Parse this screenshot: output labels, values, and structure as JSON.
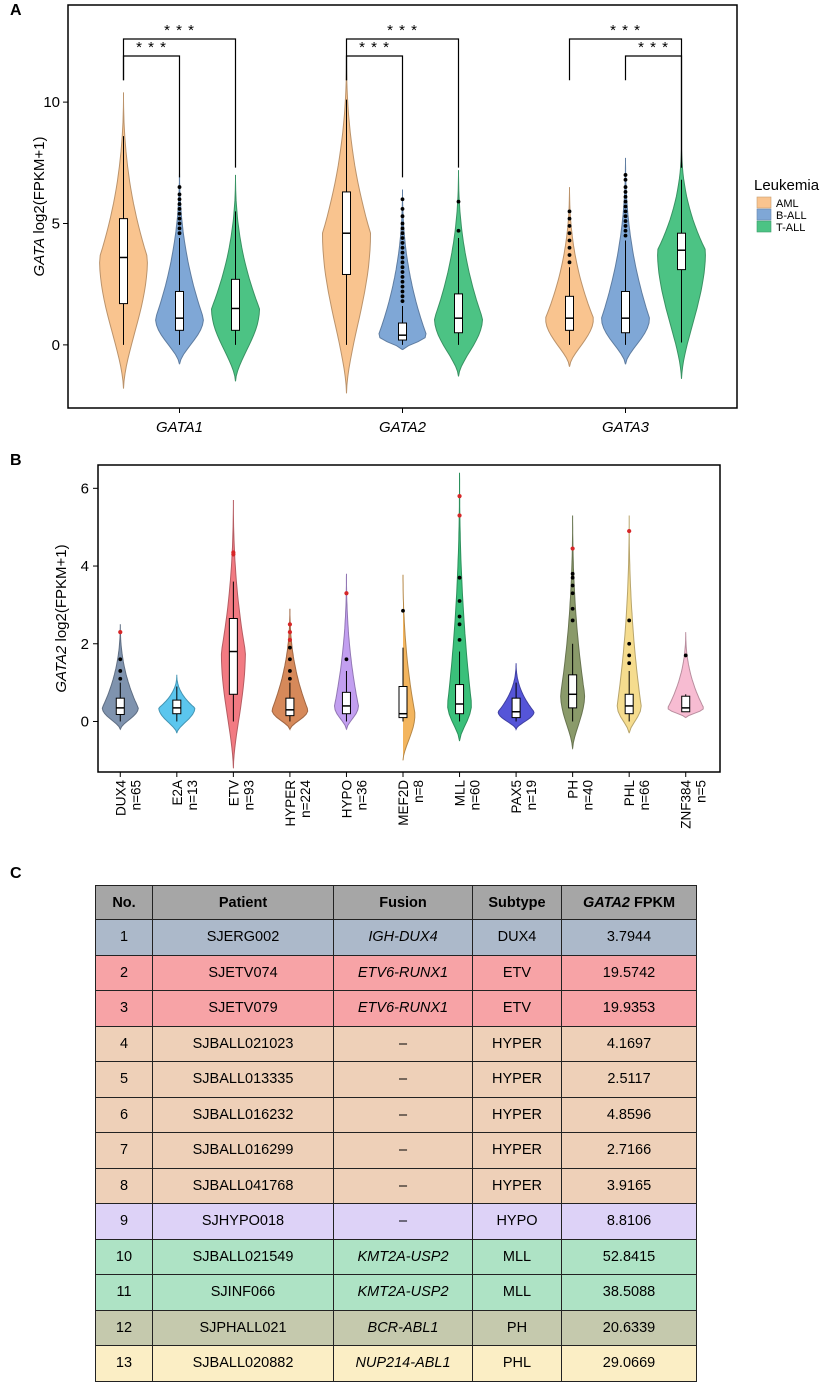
{
  "panels": {
    "a": "A",
    "b": "B",
    "c": "C"
  },
  "chart_data": [
    {
      "type": "violin",
      "panel": "A",
      "ylabel_gene": "GATA",
      "ylabel_rest": " log2(FPKM+1)",
      "ylim": [
        -2.6,
        14
      ],
      "yticks": [
        0,
        5,
        10
      ],
      "categories": [
        "GATA1",
        "GATA2",
        "GATA3"
      ],
      "legend": {
        "title": "Leukemia",
        "position": "right",
        "entries": [
          {
            "name": "AML",
            "color": "#f9c48f"
          },
          {
            "name": "B-ALL",
            "color": "#7fa7d6"
          },
          {
            "name": "T-ALL",
            "color": "#4cc384"
          }
        ]
      },
      "series": [
        {
          "name": "AML",
          "color": "#f9c48f",
          "groups": [
            {
              "category": "GATA1",
              "min": -1.8,
              "max": 10.4,
              "q1": 1.7,
              "median": 3.6,
              "q3": 5.2,
              "whisker_low": 0.0,
              "whisker_high": 8.6,
              "outliers": []
            },
            {
              "category": "GATA2",
              "min": -2.0,
              "max": 11.9,
              "q1": 2.9,
              "median": 4.6,
              "q3": 6.3,
              "whisker_low": 0.0,
              "whisker_high": 10.1,
              "outliers": []
            },
            {
              "category": "GATA3",
              "min": -0.9,
              "max": 6.5,
              "q1": 0.6,
              "median": 1.1,
              "q3": 2.0,
              "whisker_low": 0.0,
              "whisker_high": 3.2,
              "outliers": [
                3.4,
                3.7,
                4.0,
                4.3,
                4.6,
                4.9,
                5.2,
                5.5
              ]
            }
          ]
        },
        {
          "name": "B-ALL",
          "color": "#7fa7d6",
          "groups": [
            {
              "category": "GATA1",
              "min": -0.8,
              "max": 7.3,
              "q1": 0.6,
              "median": 1.1,
              "q3": 2.2,
              "whisker_low": 0.0,
              "whisker_high": 4.4,
              "outliers": [
                4.6,
                4.8,
                5.0,
                5.2,
                5.4,
                5.6,
                5.8,
                6.0,
                6.2,
                6.5
              ]
            },
            {
              "category": "GATA2",
              "min": -0.2,
              "max": 6.4,
              "q1": 0.2,
              "median": 0.4,
              "q3": 0.9,
              "whisker_low": 0.0,
              "whisker_high": 1.6,
              "outliers": [
                1.8,
                2.0,
                2.2,
                2.4,
                2.6,
                2.8,
                3.0,
                3.2,
                3.4,
                3.6,
                3.8,
                4.0,
                4.2,
                4.4,
                4.6,
                4.8,
                5.0,
                5.3,
                5.6,
                6.0
              ]
            },
            {
              "category": "GATA3",
              "min": -0.8,
              "max": 7.7,
              "q1": 0.5,
              "median": 1.1,
              "q3": 2.2,
              "whisker_low": 0.0,
              "whisker_high": 4.3,
              "outliers": [
                4.5,
                4.7,
                4.9,
                5.1,
                5.3,
                5.5,
                5.7,
                5.9,
                6.1,
                6.3,
                6.5,
                6.8,
                7.0
              ]
            }
          ]
        },
        {
          "name": "T-ALL",
          "color": "#4cc384",
          "groups": [
            {
              "category": "GATA1",
              "min": -1.5,
              "max": 7.0,
              "q1": 0.6,
              "median": 1.5,
              "q3": 2.7,
              "whisker_low": 0.0,
              "whisker_high": 5.5,
              "outliers": []
            },
            {
              "category": "GATA2",
              "min": -1.3,
              "max": 7.2,
              "q1": 0.5,
              "median": 1.1,
              "q3": 2.1,
              "whisker_low": 0.0,
              "whisker_high": 4.4,
              "outliers": [
                4.7,
                5.9
              ]
            },
            {
              "category": "GATA3",
              "min": -1.4,
              "max": 8.3,
              "q1": 3.1,
              "median": 3.9,
              "q3": 4.6,
              "whisker_low": 0.1,
              "whisker_high": 6.8,
              "outliers": []
            }
          ]
        }
      ],
      "significance": [
        {
          "category": "GATA1",
          "from": "AML",
          "to": "B-ALL",
          "label": "* * *",
          "level": 1
        },
        {
          "category": "GATA1",
          "from": "AML",
          "to": "T-ALL",
          "label": "* * *",
          "level": 2
        },
        {
          "category": "GATA2",
          "from": "AML",
          "to": "B-ALL",
          "label": "* * *",
          "level": 1
        },
        {
          "category": "GATA2",
          "from": "AML",
          "to": "T-ALL",
          "label": "* * *",
          "level": 2
        },
        {
          "category": "GATA3",
          "from": "B-ALL",
          "to": "T-ALL",
          "label": "* * *",
          "level": 1
        },
        {
          "category": "GATA3",
          "from": "AML",
          "to": "T-ALL",
          "label": "* * *",
          "level": 2
        }
      ]
    },
    {
      "type": "violin",
      "panel": "B",
      "ylabel_gene": "GATA2",
      "ylabel_rest": " log2(FPKM+1)",
      "ylim": [
        -1.3,
        6.6
      ],
      "yticks": [
        0,
        2,
        4,
        6
      ],
      "groups": [
        {
          "name": "DUX4",
          "n": "n=65",
          "color": "#7f93ae",
          "min": -0.2,
          "max": 2.5,
          "q1": 0.18,
          "median": 0.35,
          "q3": 0.6,
          "whisker_low": 0.0,
          "whisker_high": 1.0,
          "outliers": [
            1.1,
            1.3,
            1.6
          ],
          "red": [
            2.3
          ]
        },
        {
          "name": "E2A",
          "n": "n=13",
          "color": "#5bc6ee",
          "min": -0.3,
          "max": 1.2,
          "q1": 0.2,
          "median": 0.35,
          "q3": 0.55,
          "whisker_low": 0.0,
          "whisker_high": 0.9,
          "outliers": [],
          "red": []
        },
        {
          "name": "ETV",
          "n": "n=93",
          "color": "#f27a82",
          "min": -1.2,
          "max": 5.7,
          "q1": 0.7,
          "median": 1.8,
          "q3": 2.65,
          "whisker_low": 0.0,
          "whisker_high": 3.6,
          "outliers": [],
          "red": [
            4.3,
            4.35
          ]
        },
        {
          "name": "HYPER",
          "n": "n=224",
          "color": "#d6895a",
          "min": -0.2,
          "max": 2.9,
          "q1": 0.15,
          "median": 0.3,
          "q3": 0.6,
          "whisker_low": 0.0,
          "whisker_high": 1.0,
          "outliers": [
            1.1,
            1.3,
            1.6,
            1.9
          ],
          "red": [
            2.1,
            2.3,
            2.5
          ]
        },
        {
          "name": "HYPO",
          "n": "n=36",
          "color": "#c29ff0",
          "min": -0.2,
          "max": 3.8,
          "q1": 0.2,
          "median": 0.4,
          "q3": 0.75,
          "whisker_low": 0.0,
          "whisker_high": 1.3,
          "outliers": [
            1.6
          ],
          "red": [
            3.3
          ]
        },
        {
          "name": "MEF2D",
          "n": "n=8",
          "color": "#f3b55e",
          "min": -1.0,
          "max": 3.9,
          "q1": 0.1,
          "median": 0.2,
          "q3": 0.9,
          "whisker_low": 0.0,
          "whisker_high": 1.9,
          "outliers": [
            2.85
          ],
          "red": []
        },
        {
          "name": "MLL",
          "n": "n=60",
          "color": "#3ac07a",
          "min": -0.5,
          "max": 6.4,
          "q1": 0.2,
          "median": 0.45,
          "q3": 0.95,
          "whisker_low": 0.0,
          "whisker_high": 1.8,
          "outliers": [
            2.1,
            2.5,
            2.7,
            3.1,
            3.7
          ],
          "red": [
            5.3,
            5.8
          ]
        },
        {
          "name": "PAX5",
          "n": "n=19",
          "color": "#5555d8",
          "min": -0.2,
          "max": 1.5,
          "q1": 0.1,
          "median": 0.25,
          "q3": 0.6,
          "whisker_low": 0.0,
          "whisker_high": 1.0,
          "outliers": [],
          "red": []
        },
        {
          "name": "PH",
          "n": "n=40",
          "color": "#8a9a6a",
          "min": -0.7,
          "max": 5.3,
          "q1": 0.35,
          "median": 0.7,
          "q3": 1.2,
          "whisker_low": 0.0,
          "whisker_high": 2.0,
          "outliers": [
            2.6,
            2.9,
            3.3,
            3.5,
            3.7,
            3.8
          ],
          "red": [
            4.45
          ]
        },
        {
          "name": "PHL",
          "n": "n=66",
          "color": "#f5dc8e",
          "min": -0.3,
          "max": 5.3,
          "q1": 0.2,
          "median": 0.4,
          "q3": 0.7,
          "whisker_low": 0.0,
          "whisker_high": 1.3,
          "outliers": [
            1.5,
            1.7,
            2.0,
            2.6
          ],
          "red": [
            4.9
          ]
        },
        {
          "name": "ZNF384",
          "n": "n=5",
          "color": "#f7bcd2",
          "min": 0.1,
          "max": 2.3,
          "q1": 0.25,
          "median": 0.35,
          "q3": 0.65,
          "whisker_low": 0.25,
          "whisker_high": 0.7,
          "outliers": [
            1.7
          ],
          "red": []
        }
      ]
    }
  ],
  "table": {
    "headers": {
      "no": "No.",
      "patient": "Patient",
      "fusion": "Fusion",
      "subtype": "Subtype",
      "fpkm_gene": "GATA2",
      "fpkm_rest": " FPKM"
    },
    "rows": [
      {
        "no": "1",
        "patient": "SJERG002",
        "fusion": "IGH-DUX4",
        "subtype": "DUX4",
        "fpkm": "3.7944",
        "color": "#acb9ca"
      },
      {
        "no": "2",
        "patient": "SJETV074",
        "fusion": "ETV6-RUNX1",
        "subtype": "ETV",
        "fpkm": "19.5742",
        "color": "#f7a3a6"
      },
      {
        "no": "3",
        "patient": "SJETV079",
        "fusion": "ETV6-RUNX1",
        "subtype": "ETV",
        "fpkm": "19.9353",
        "color": "#f7a3a6"
      },
      {
        "no": "4",
        "patient": "SJBALL021023",
        "fusion": "–",
        "subtype": "HYPER",
        "fpkm": "4.1697",
        "color": "#eed0b8"
      },
      {
        "no": "5",
        "patient": "SJBALL013335",
        "fusion": "–",
        "subtype": "HYPER",
        "fpkm": "2.5117",
        "color": "#eed0b8"
      },
      {
        "no": "6",
        "patient": "SJBALL016232",
        "fusion": "–",
        "subtype": "HYPER",
        "fpkm": "4.8596",
        "color": "#eed0b8"
      },
      {
        "no": "7",
        "patient": "SJBALL016299",
        "fusion": "–",
        "subtype": "HYPER",
        "fpkm": "2.7166",
        "color": "#eed0b8"
      },
      {
        "no": "8",
        "patient": "SJBALL041768",
        "fusion": "–",
        "subtype": "HYPER",
        "fpkm": "3.9165",
        "color": "#eed0b8"
      },
      {
        "no": "9",
        "patient": "SJHYPO018",
        "fusion": "–",
        "subtype": "HYPO",
        "fpkm": "8.8106",
        "color": "#ddd2f7"
      },
      {
        "no": "10",
        "patient": "SJBALL021549",
        "fusion": "KMT2A-USP2",
        "subtype": "MLL",
        "fpkm": "52.8415",
        "color": "#aee3c5"
      },
      {
        "no": "11",
        "patient": "SJINF066",
        "fusion": "KMT2A-USP2",
        "subtype": "MLL",
        "fpkm": "38.5088",
        "color": "#aee3c5"
      },
      {
        "no": "12",
        "patient": "SJPHALL021",
        "fusion": "BCR-ABL1",
        "subtype": "PH",
        "fpkm": "20.6339",
        "color": "#c5c9ad"
      },
      {
        "no": "13",
        "patient": "SJBALL020882",
        "fusion": "NUP214-ABL1",
        "subtype": "PHL",
        "fpkm": "29.0669",
        "color": "#fbeec5"
      }
    ]
  }
}
